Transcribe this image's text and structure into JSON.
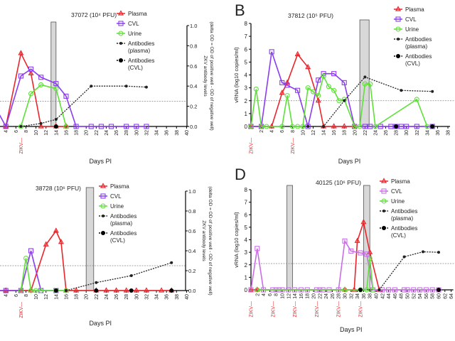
{
  "colors": {
    "plasma": "#e8262b",
    "cvl": "#8a3cf0",
    "cvl_d": "#c96ee8",
    "urine": "#5fe03a",
    "antibody": "#222222",
    "threshold": "#888888",
    "bar": "#d8d8d8"
  },
  "legend": [
    "Plasma",
    "CVL",
    "Urine",
    "Antibodies\n(plasma)",
    "Antibodies\n(CVL)"
  ],
  "chart_data": [
    {
      "panel": "A",
      "letter": "",
      "type": "line",
      "title": "37072 (10⁴ PFU)",
      "xlabel": "Days PI",
      "ylabel": "",
      "y2label": "ZKV antibody levels\n(delta OD = OD of positive well - OD of negative well)",
      "xticks": [
        2,
        4,
        6,
        8,
        10,
        12,
        14,
        16,
        18,
        20,
        22,
        24,
        26,
        28,
        30,
        32,
        34,
        36,
        38,
        40
      ],
      "yticks": [],
      "y2ticks": [
        "0.0",
        "0.2",
        "0.4",
        "0.6",
        "0.8",
        "1.0"
      ],
      "ylim": [
        0,
        8
      ],
      "y2lim": [
        0,
        1.0
      ],
      "threshold": 2,
      "shaded": [
        [
          13,
          14
        ]
      ],
      "zikv_days": [
        7
      ],
      "zikv_label": "ZIKV",
      "series": [
        {
          "name": "Plasma",
          "values": [
            [
              4,
              0
            ],
            [
              7,
              5.8
            ],
            [
              9,
              4.2
            ],
            [
              11,
              0
            ],
            [
              14,
              0
            ],
            [
              16,
              0
            ]
          ]
        },
        {
          "name": "CVL",
          "values": [
            [
              1,
              2.2
            ],
            [
              4,
              0
            ],
            [
              7,
              4.0
            ],
            [
              9,
              4.55
            ],
            [
              11,
              3.9
            ],
            [
              14,
              3.4
            ],
            [
              16,
              2.4
            ],
            [
              18,
              0
            ],
            [
              21,
              0
            ],
            [
              23,
              0
            ],
            [
              25,
              0
            ],
            [
              28,
              0
            ],
            [
              30,
              0
            ],
            [
              32,
              0
            ]
          ]
        },
        {
          "name": "Urine",
          "values": [
            [
              7,
              0
            ],
            [
              9,
              2.6
            ],
            [
              11,
              3.3
            ],
            [
              14,
              3.0
            ],
            [
              16,
              0
            ]
          ]
        },
        {
          "name": "Antibodies (plasma)",
          "axis": "y2",
          "values": [
            [
              7,
              0
            ],
            [
              11,
              0.03
            ],
            [
              14,
              0.07
            ],
            [
              21,
              0.4
            ],
            [
              28,
              0.4
            ],
            [
              32,
              0.39
            ]
          ]
        },
        {
          "name": "Antibodies (CVL)",
          "axis": "y2",
          "values": [
            [
              14,
              0
            ]
          ]
        }
      ]
    },
    {
      "panel": "B",
      "letter": "B",
      "type": "line",
      "title": "37812 (10⁵ PFU)",
      "xlabel": "Days PI",
      "ylabel": "vRNA (log10 copies/ml)",
      "y2label": "",
      "xticks": [
        2,
        4,
        6,
        8,
        10,
        12,
        14,
        16,
        18,
        20,
        22,
        24,
        26,
        28,
        30,
        32,
        34,
        36,
        38
      ],
      "yticks": [
        "0",
        "1",
        "2",
        "3",
        "4",
        "5",
        "6",
        "7",
        "8"
      ],
      "y2ticks": [],
      "ylim": [
        0,
        8
      ],
      "y2lim": [
        0,
        1.0
      ],
      "threshold": 2,
      "shaded": [
        [
          21,
          22.8
        ]
      ],
      "zikv_days": [
        0,
        8
      ],
      "zikv_label": "ZIKV",
      "series": [
        {
          "name": "Plasma",
          "values": [
            [
              0,
              0
            ],
            [
              2,
              0
            ],
            [
              4,
              0
            ],
            [
              6,
              2.6
            ],
            [
              7,
              3.4
            ],
            [
              9,
              5.6
            ],
            [
              11,
              4.6
            ],
            [
              13,
              2.0
            ],
            [
              14,
              0
            ],
            [
              16,
              0
            ],
            [
              18,
              0
            ],
            [
              20,
              0
            ]
          ]
        },
        {
          "name": "CVL",
          "values": [
            [
              0,
              0
            ],
            [
              2,
              0
            ],
            [
              4,
              5.8
            ],
            [
              6,
              3.4
            ],
            [
              7,
              3.2
            ],
            [
              9,
              2.8
            ],
            [
              11,
              0
            ],
            [
              13,
              3.6
            ],
            [
              14,
              4.1
            ],
            [
              16,
              4.1
            ],
            [
              18,
              3.4
            ],
            [
              20,
              0
            ],
            [
              22,
              0
            ],
            [
              23,
              0
            ],
            [
              25,
              0
            ],
            [
              27,
              0
            ],
            [
              28,
              0
            ],
            [
              29,
              0
            ],
            [
              30,
              0
            ],
            [
              32,
              0
            ],
            [
              35,
              0
            ]
          ]
        },
        {
          "name": "Urine",
          "values": [
            [
              0,
              0
            ],
            [
              1,
              2.9
            ],
            [
              2,
              0
            ],
            [
              3,
              0
            ],
            [
              6,
              0
            ],
            [
              7,
              2.4
            ],
            [
              8,
              0
            ],
            [
              9,
              0
            ],
            [
              10,
              0
            ],
            [
              11,
              3.0
            ],
            [
              12,
              2.7
            ],
            [
              13,
              2.4
            ],
            [
              14,
              3.9
            ],
            [
              15,
              3.1
            ],
            [
              16,
              2.8
            ],
            [
              17,
              2.0
            ],
            [
              18,
              2.1
            ],
            [
              20,
              0
            ],
            [
              21,
              0
            ],
            [
              22,
              3.3
            ],
            [
              23,
              3.3
            ],
            [
              24,
              0
            ],
            [
              32,
              2.1
            ],
            [
              34,
              0
            ]
          ]
        },
        {
          "name": "Antibodies (plasma)",
          "axis": "y2",
          "values": [
            [
              11,
              0
            ],
            [
              14,
              0
            ],
            [
              18,
              0.25
            ],
            [
              22,
              0.48
            ],
            [
              29,
              0.35
            ],
            [
              35,
              0.34
            ]
          ]
        },
        {
          "name": "Antibodies (CVL)",
          "axis": "y2",
          "values": [
            [
              28,
              0
            ],
            [
              35,
              0
            ]
          ]
        }
      ]
    },
    {
      "panel": "C",
      "letter": "",
      "type": "line",
      "title": "38728 (10⁶ PFU)",
      "xlabel": "Days PI",
      "ylabel": "",
      "y2label": "ZKV antibody levels\n(delta OD = OD of positive well - OD of negative well)",
      "xticks": [
        2,
        4,
        6,
        8,
        10,
        12,
        14,
        16,
        18,
        20,
        22,
        24,
        26,
        28,
        30,
        32,
        34,
        36,
        38,
        40
      ],
      "yticks": [],
      "y2ticks": [
        "0.0",
        "0.2",
        "0.4",
        "0.6",
        "0.8",
        "1.0"
      ],
      "ylim": [
        0,
        8
      ],
      "y2lim": [
        0,
        1.0
      ],
      "threshold": 2,
      "shaded": [
        [
          20,
          21.5
        ]
      ],
      "zikv_days": [
        7
      ],
      "zikv_label": "ZIKV",
      "series": [
        {
          "name": "Plasma",
          "values": [
            [
              1,
              0
            ],
            [
              4,
              0
            ],
            [
              7,
              0
            ],
            [
              9,
              0
            ],
            [
              12,
              3.7
            ],
            [
              14,
              4.8
            ],
            [
              15,
              3.9
            ],
            [
              16,
              0
            ],
            [
              18,
              0
            ],
            [
              22,
              0
            ],
            [
              24,
              0
            ],
            [
              26,
              0
            ],
            [
              28,
              0
            ],
            [
              30,
              0
            ],
            [
              32,
              0
            ],
            [
              35,
              0
            ],
            [
              37,
              0
            ]
          ]
        },
        {
          "name": "CVL",
          "values": [
            [
              1,
              1.2
            ],
            [
              2,
              0
            ],
            [
              4,
              0
            ],
            [
              7,
              0
            ],
            [
              9,
              3.2
            ],
            [
              11,
              0
            ],
            [
              14,
              0
            ]
          ]
        },
        {
          "name": "Urine",
          "values": [
            [
              7,
              0
            ],
            [
              8,
              2.6
            ],
            [
              9,
              0
            ],
            [
              10,
              0
            ],
            [
              11,
              0
            ],
            [
              14,
              0
            ],
            [
              16,
              0
            ]
          ]
        },
        {
          "name": "Antibodies (plasma)",
          "axis": "y2",
          "values": [
            [
              16,
              0
            ],
            [
              22,
              0.08
            ],
            [
              29,
              0.15
            ],
            [
              37,
              0.28
            ]
          ]
        },
        {
          "name": "Antibodies (CVL)",
          "axis": "y2",
          "values": [
            [
              14,
              0
            ],
            [
              22,
              0
            ],
            [
              29,
              0
            ],
            [
              37,
              0
            ]
          ]
        }
      ]
    },
    {
      "panel": "D",
      "letter": "D",
      "type": "line",
      "title": "40125 (10⁶ PFU)",
      "xlabel": "Days PI",
      "ylabel": "vRNA (log10 copies/ml)",
      "y2label": "",
      "xticks": [
        2,
        4,
        6,
        8,
        10,
        12,
        14,
        16,
        18,
        20,
        22,
        24,
        26,
        28,
        30,
        32,
        34,
        36,
        38,
        40,
        42,
        44,
        46,
        48,
        50,
        52,
        54,
        56,
        58,
        60,
        62,
        64
      ],
      "yticks": [
        "0",
        "1",
        "2",
        "3",
        "4",
        "5",
        "6",
        "7",
        "8"
      ],
      "y2ticks": [],
      "ylim": [
        0,
        8
      ],
      "y2lim": [
        0,
        1.0
      ],
      "threshold": 2.1,
      "shaded": [
        [
          11.5,
          13.3
        ],
        [
          36,
          38
        ]
      ],
      "zikv_days": [
        0,
        7,
        14,
        21,
        28,
        35
      ],
      "zikv_label": "ZIKV",
      "series": [
        {
          "name": "Plasma",
          "values": [
            [
              0,
              0
            ],
            [
              2,
              0
            ],
            [
              30,
              0
            ],
            [
              33,
              0
            ],
            [
              34,
              3.9
            ],
            [
              36,
              5.4
            ],
            [
              38,
              3.0
            ],
            [
              41,
              0
            ]
          ]
        },
        {
          "name": "CVL",
          "values": [
            [
              0,
              0
            ],
            [
              2,
              3.3
            ],
            [
              4,
              0
            ],
            [
              7,
              0
            ],
            [
              8,
              0
            ],
            [
              9,
              0
            ],
            [
              10,
              0
            ],
            [
              12,
              0
            ],
            [
              14,
              0
            ],
            [
              16,
              0
            ],
            [
              18,
              0
            ],
            [
              21,
              0
            ],
            [
              22,
              0
            ],
            [
              23,
              0
            ],
            [
              25,
              0
            ],
            [
              28,
              0
            ],
            [
              30,
              3.9
            ],
            [
              32,
              3.1
            ],
            [
              35,
              2.95
            ],
            [
              37,
              2.85
            ],
            [
              39,
              0
            ],
            [
              42,
              0
            ],
            [
              44,
              0
            ],
            [
              46,
              0
            ],
            [
              49,
              0
            ],
            [
              50,
              0
            ],
            [
              52,
              0
            ],
            [
              54,
              0
            ],
            [
              56,
              0
            ],
            [
              58,
              0
            ],
            [
              60,
              0
            ]
          ]
        },
        {
          "name": "Urine",
          "values": [
            [
              2,
              0
            ],
            [
              30,
              0
            ],
            [
              35,
              0
            ],
            [
              37,
              0
            ],
            [
              38,
              2.5
            ],
            [
              39,
              0
            ]
          ]
        },
        {
          "name": "Antibodies (plasma)",
          "axis": "y2",
          "values": [
            [
              41,
              0
            ],
            [
              49,
              0.33
            ],
            [
              55,
              0.38
            ],
            [
              60,
              0.375
            ]
          ]
        },
        {
          "name": "Antibodies (CVL)",
          "axis": "y2",
          "values": [
            [
              35,
              0
            ],
            [
              60,
              0
            ]
          ]
        }
      ]
    }
  ]
}
